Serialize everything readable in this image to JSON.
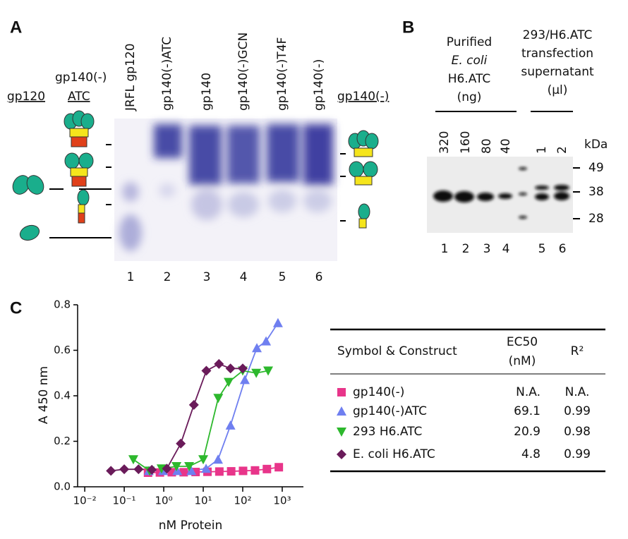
{
  "panel_a": {
    "label": "A",
    "lanes": [
      "JRFL gp120",
      "gp140(-)ATC",
      "gp140",
      "gp140(-)GCN",
      "gp140(-)T4F",
      "gp140(-)"
    ],
    "lane_numbers": [
      1,
      2,
      3,
      4,
      5,
      6
    ],
    "left_labels": [
      "gp120",
      "gp140(-)",
      "ATC"
    ],
    "right_label": "gp140(-)"
  },
  "panel_b": {
    "label": "B",
    "group1": [
      "Purified",
      "E. coli",
      "H6.ATC",
      "(ng)"
    ],
    "group2": [
      "293/H6.ATC",
      "transfection",
      "supernatant",
      "(μl)"
    ],
    "loads": [
      320,
      160,
      80,
      40,
      1,
      2
    ],
    "unit": "kDa",
    "markers": [
      49,
      38,
      28
    ],
    "lane_numbers": [
      1,
      2,
      3,
      4,
      5,
      6
    ]
  },
  "panel_c": {
    "label": "C"
  },
  "chart_data": {
    "type": "scatter",
    "xlabel": "nM Protein",
    "ylabel": "A 450 nm",
    "xscale": "log",
    "xlim": [
      0.0066,
      3440
    ],
    "ylim": [
      0,
      0.8
    ],
    "xticks": [
      {
        "value": 0.01,
        "label": "10⁻²"
      },
      {
        "value": 0.1,
        "label": "10⁻¹"
      },
      {
        "value": 1,
        "label": "10⁰"
      },
      {
        "value": 10,
        "label": "10¹"
      },
      {
        "value": 100,
        "label": "10²"
      },
      {
        "value": 1000,
        "label": "10³"
      }
    ],
    "yticks": [
      {
        "value": 0,
        "label": "0.0"
      },
      0.2,
      0.4,
      0.6,
      0.8
    ],
    "series": [
      {
        "name": "gp140(-)",
        "color": "#e8358a",
        "marker": "square",
        "x": [
          0.4,
          0.8,
          1.6,
          3.2,
          6.4,
          12.8,
          25.6,
          51,
          102,
          205,
          410,
          820
        ],
        "values": [
          0.062,
          0.063,
          0.064,
          0.064,
          0.065,
          0.066,
          0.067,
          0.068,
          0.07,
          0.072,
          0.078,
          0.086
        ]
      },
      {
        "name": "gp140(-)ATC",
        "color": "#6f7ff0",
        "marker": "triangle-up",
        "x": [
          0.42,
          0.96,
          2.2,
          5,
          11.8,
          23.7,
          49,
          113,
          228,
          390,
          780
        ],
        "values": [
          0.07,
          0.07,
          0.07,
          0.07,
          0.08,
          0.12,
          0.27,
          0.47,
          0.61,
          0.64,
          0.72
        ]
      },
      {
        "name": "293 H6.ATC",
        "color": "#2db82d",
        "marker": "triangle-down",
        "x": [
          0.17,
          0.44,
          0.88,
          2.1,
          4.4,
          10,
          24,
          44,
          100,
          220,
          440
        ],
        "values": [
          0.12,
          0.07,
          0.08,
          0.09,
          0.09,
          0.12,
          0.39,
          0.46,
          0.51,
          0.5,
          0.51
        ]
      },
      {
        "name": "E. coli H6.ATC",
        "color": "#6a1b5a",
        "marker": "diamond",
        "x": [
          0.046,
          0.1,
          0.23,
          0.5,
          1.2,
          2.7,
          5.8,
          12,
          25,
          49,
          100
        ],
        "values": [
          0.07,
          0.077,
          0.077,
          0.075,
          0.08,
          0.19,
          0.36,
          0.51,
          0.54,
          0.52,
          0.52
        ]
      }
    ]
  },
  "table": {
    "header": {
      "symbol": "Symbol & Construct",
      "ec50": "EC50",
      "ec50_unit": "(nM)",
      "r2": "R²"
    },
    "rows": [
      {
        "ec50": "N.A.",
        "r2": "N.A."
      },
      {
        "ec50": 69.1,
        "r2": 0.99
      },
      {
        "ec50": 20.9,
        "r2": 0.98
      },
      {
        "ec50": 4.8,
        "r2": 0.99
      }
    ]
  }
}
